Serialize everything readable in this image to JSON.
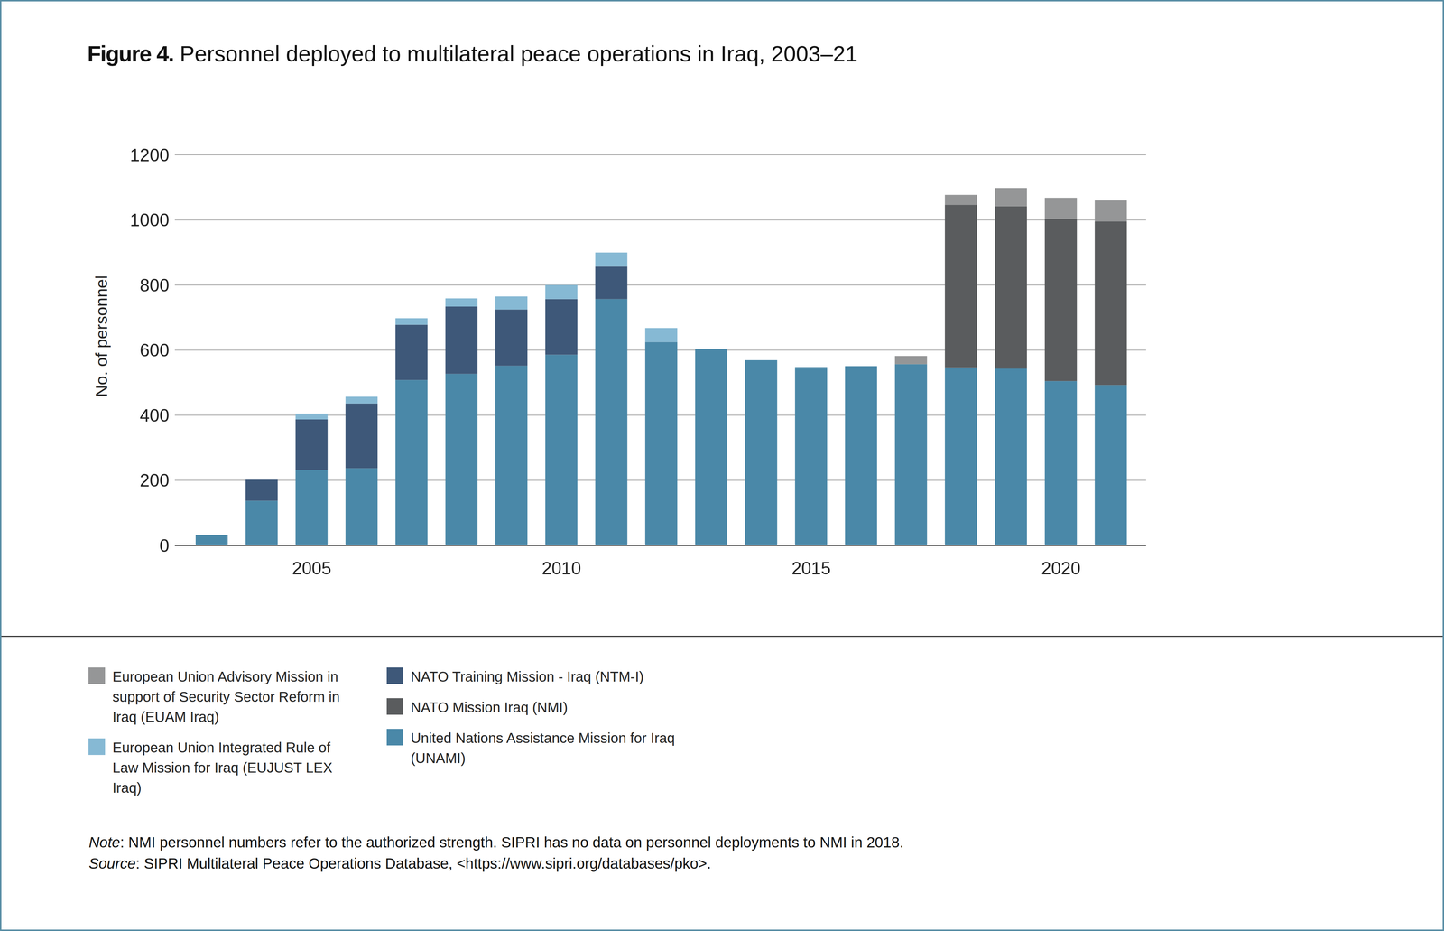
{
  "chart_data": {
    "type": "bar",
    "title": "Figure 4. Personnel deployed to multilateral peace operations in Iraq, 2003–21",
    "ylabel": "No. of personnel",
    "categories": [
      null,
      null,
      "2005",
      null,
      null,
      null,
      null,
      "2010",
      null,
      null,
      null,
      null,
      "2015",
      null,
      null,
      null,
      null,
      "2020",
      null
    ],
    "series": [
      {
        "name": "United Nations Assistance Mission for Iraq (UNAMI)",
        "color": "#4a88a8",
        "values": [
          32,
          137,
          232,
          237,
          508,
          527,
          552,
          586,
          757,
          625,
          603,
          569,
          548,
          551,
          557,
          547,
          543,
          505,
          493
        ]
      },
      {
        "name": "NATO Mission Iraq (NMI)",
        "color": "#5a5c5e",
        "values": [
          0,
          0,
          0,
          0,
          0,
          0,
          0,
          0,
          0,
          0,
          0,
          0,
          0,
          0,
          0,
          499,
          499,
          498,
          502
        ]
      },
      {
        "name": "NATO Training Mission - Iraq (NTM-I)",
        "color": "#3e5879",
        "values": [
          0,
          65,
          155,
          199,
          170,
          207,
          173,
          171,
          100,
          0,
          0,
          0,
          0,
          0,
          0,
          0,
          0,
          0,
          0
        ]
      },
      {
        "name": "European Union Integrated Rule of Law Mission for Iraq (EUJUST LEX Iraq)",
        "color": "#86b9d4",
        "values": [
          0,
          0,
          18,
          21,
          20,
          25,
          40,
          43,
          43,
          43,
          0,
          0,
          0,
          0,
          0,
          0,
          0,
          0,
          0
        ]
      },
      {
        "name": "European Union Advisory Mission in support of Security Sector Reform in Iraq (EUAM Iraq)",
        "color": "#959697",
        "values": [
          0,
          0,
          0,
          0,
          0,
          0,
          0,
          0,
          0,
          0,
          0,
          0,
          0,
          0,
          25,
          31,
          56,
          65,
          65
        ]
      }
    ],
    "ylim": [
      0,
      1200
    ],
    "yticks": [
      0,
      200,
      400,
      600,
      800,
      1000,
      1200
    ],
    "grid": true,
    "stacked": true,
    "legend": "bottom",
    "note": "Note: NMI personnel numbers refer to the authorized strength. SIPRI has no data on personnel deployments to NMI in 2018.",
    "source": "Source: SIPRI Multilateral Peace Operations Database, <https://www.sipri.org/databases/pko>."
  }
}
